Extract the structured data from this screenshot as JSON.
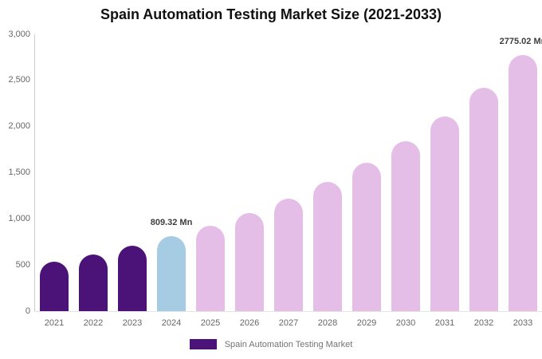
{
  "title": "Spain Automation Testing Market Size (2021-2033)",
  "chart_data": {
    "type": "bar",
    "title": "Spain Automation Testing Market Size (2021-2033)",
    "categories": [
      "2021",
      "2022",
      "2023",
      "2024",
      "2025",
      "2026",
      "2027",
      "2028",
      "2029",
      "2030",
      "2031",
      "2032",
      "2033"
    ],
    "values": [
      535,
      615,
      706,
      809.32,
      928,
      1064,
      1220,
      1399,
      1604,
      1840,
      2110,
      2420,
      2775.02
    ],
    "unit": "Mn",
    "labeled_points": [
      {
        "category": "2024",
        "label": "809.32 Mn"
      },
      {
        "category": "2033",
        "label": "2775.02 Mn"
      }
    ],
    "bar_colors": [
      "#4B1278",
      "#4B1278",
      "#4B1278",
      "#A6CCE3",
      "#E5BEE8",
      "#E5BEE8",
      "#E5BEE8",
      "#E5BEE8",
      "#E5BEE8",
      "#E5BEE8",
      "#E5BEE8",
      "#E5BEE8",
      "#E5BEE8"
    ],
    "xlabel": "",
    "ylabel": "",
    "ylim": [
      0,
      3000
    ],
    "yticks": [
      0,
      500,
      1000,
      1500,
      2000,
      2500,
      3000
    ],
    "ytick_labels": [
      "0",
      "500",
      "1,000",
      "1,500",
      "2,000",
      "2,500",
      "3,000"
    ],
    "grid": "off",
    "legend": {
      "position": "bottom",
      "entries": [
        {
          "label": "Spain Automation Testing Market",
          "swatch_color": "#4B1278"
        }
      ]
    }
  },
  "colors": {
    "purple": "#4B1278",
    "blue": "#A6CCE3",
    "pink": "#E5BEE8",
    "axis_line": "#cccccc",
    "baseline": "#e4e4e4",
    "tick_text": "#666666",
    "title_text": "#111111",
    "legend_text": "#747474",
    "annotation_text": "#3d3d3d"
  }
}
